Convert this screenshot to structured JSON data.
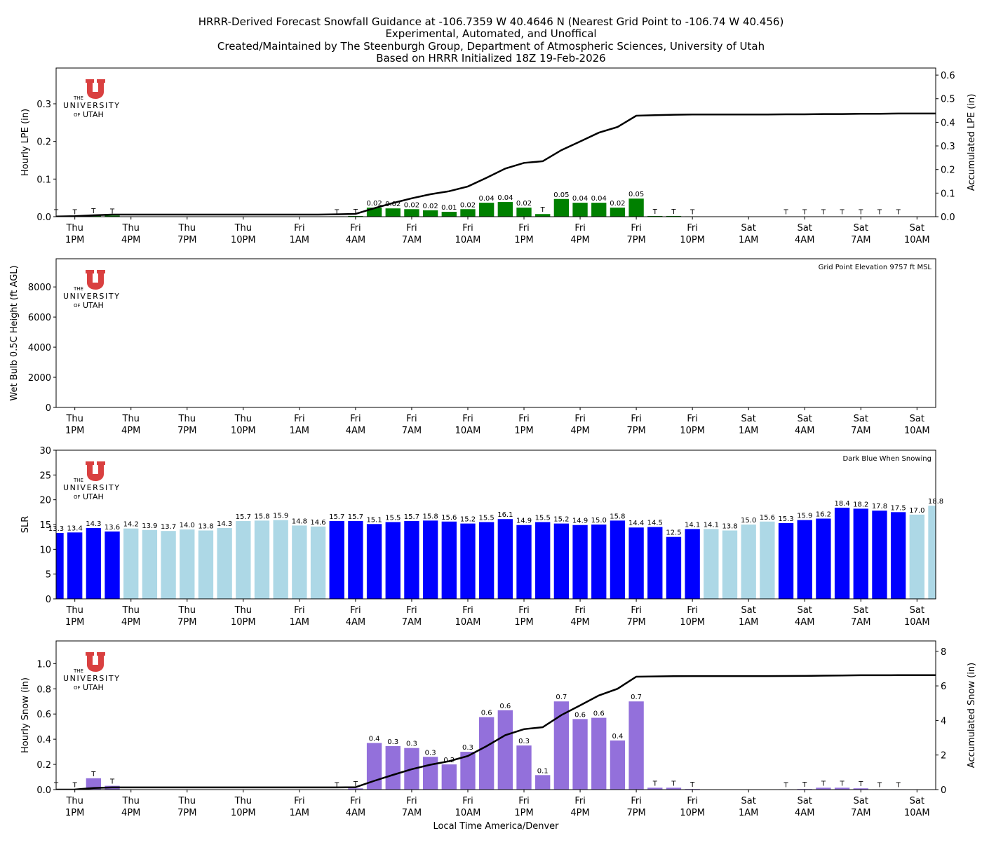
{
  "title_lines": [
    "HRRR-Derived Forecast Snowfall Guidance at -106.7359 W 40.4646 N (Nearest Grid Point to -106.74 W 40.456)",
    "Experimental, Automated, and Unoffical",
    "Created/Maintained by The Steenburgh Group, Department of Atmospheric Sciences, University of Utah",
    "Based on HRRR Initialized 18Z 19-Feb-2026"
  ],
  "logo": {
    "lines": [
      "THE",
      "UNIVERSITY",
      "OF",
      "UTAH"
    ],
    "color": "#d94040"
  },
  "x_tick_labels": [
    [
      "Thu",
      "1PM"
    ],
    [
      "Thu",
      "4PM"
    ],
    [
      "Thu",
      "7PM"
    ],
    [
      "Thu",
      "10PM"
    ],
    [
      "Fri",
      "1AM"
    ],
    [
      "Fri",
      "4AM"
    ],
    [
      "Fri",
      "7AM"
    ],
    [
      "Fri",
      "10AM"
    ],
    [
      "Fri",
      "1PM"
    ],
    [
      "Fri",
      "4PM"
    ],
    [
      "Fri",
      "7PM"
    ],
    [
      "Fri",
      "10PM"
    ],
    [
      "Sat",
      "1AM"
    ],
    [
      "Sat",
      "4AM"
    ],
    [
      "Sat",
      "7AM"
    ],
    [
      "Sat",
      "10AM"
    ]
  ],
  "xlabel": "Local Time America/Denver",
  "chart_data": [
    {
      "type": "bar",
      "ylabel": "Hourly LPE (in)",
      "ylim": [
        0,
        0.395
      ],
      "yticks": [
        0.0,
        0.1,
        0.2,
        0.3
      ],
      "bar_color": "#008000",
      "values": [
        0.001,
        0.001,
        0.004,
        0.003,
        0,
        0,
        0,
        0,
        0,
        0,
        0,
        0,
        0,
        0,
        0,
        0.001,
        0.002,
        0.024,
        0.022,
        0.02,
        0.017,
        0.013,
        0.02,
        0.037,
        0.039,
        0.024,
        0.007,
        0.047,
        0.037,
        0.037,
        0.024,
        0.048,
        0.002,
        0.002,
        0.001,
        0,
        0,
        0,
        0,
        0.0005,
        0.0005,
        0.0005,
        0.0005,
        0.0005,
        0.0005,
        0.0005,
        0,
        0
      ],
      "labels": [
        "T",
        "T",
        "T",
        "T",
        null,
        null,
        null,
        null,
        null,
        null,
        null,
        null,
        null,
        null,
        null,
        "T",
        "T",
        "0.02",
        "0.02",
        "0.02",
        "0.02",
        "0.01",
        "0.02",
        "0.04",
        "0.04",
        "0.02",
        "T",
        "0.05",
        "0.04",
        "0.04",
        "0.02",
        "0.05",
        "T",
        "T",
        "T",
        null,
        null,
        null,
        null,
        "T",
        "T",
        "T",
        "T",
        "T",
        "T",
        "T",
        null,
        null
      ],
      "secondary": {
        "type": "line",
        "ylabel": "Accumulated LPE (in)",
        "ylim": [
          0,
          0.63
        ],
        "yticks": [
          0.0,
          0.1,
          0.2,
          0.3,
          0.4,
          0.5,
          0.6
        ],
        "values": [
          0.001,
          0.002,
          0.006,
          0.009,
          0.009,
          0.009,
          0.009,
          0.009,
          0.009,
          0.009,
          0.009,
          0.009,
          0.009,
          0.009,
          0.009,
          0.01,
          0.012,
          0.036,
          0.058,
          0.078,
          0.095,
          0.108,
          0.128,
          0.165,
          0.204,
          0.228,
          0.235,
          0.282,
          0.319,
          0.356,
          0.38,
          0.428,
          0.43,
          0.432,
          0.433,
          0.433,
          0.433,
          0.433,
          0.433,
          0.434,
          0.434,
          0.435,
          0.435,
          0.436,
          0.436,
          0.437,
          0.437,
          0.437
        ]
      }
    },
    {
      "type": "line",
      "ylabel": "Wet Bulb 0.5C Height (ft AGL)",
      "ylim": [
        0,
        9870
      ],
      "yticks": [
        0,
        2000,
        4000,
        6000,
        8000
      ],
      "annotation": "Grid Point Elevation 9757 ft MSL",
      "values": []
    },
    {
      "type": "bar",
      "ylabel": "SLR",
      "ylim": [
        0,
        30
      ],
      "yticks": [
        0,
        5,
        10,
        15,
        20,
        25,
        30
      ],
      "annotation": "Dark Blue When Snowing",
      "colors": {
        "snowing": "#0000ff",
        "not_snowing": "#add8e6"
      },
      "values": [
        13.3,
        13.4,
        14.3,
        13.6,
        14.2,
        13.9,
        13.7,
        14.0,
        13.8,
        14.3,
        15.7,
        15.8,
        15.9,
        14.8,
        14.6,
        15.7,
        15.7,
        15.1,
        15.5,
        15.7,
        15.8,
        15.6,
        15.2,
        15.5,
        16.1,
        14.9,
        15.5,
        15.2,
        14.9,
        15.0,
        15.8,
        14.4,
        14.5,
        12.5,
        14.1,
        14.1,
        13.8,
        15.0,
        15.6,
        15.3,
        15.9,
        16.2,
        18.4,
        18.2,
        17.8,
        17.5,
        17.0,
        18.8
      ],
      "snowing": [
        1,
        1,
        1,
        1,
        0,
        0,
        0,
        0,
        0,
        0,
        0,
        0,
        0,
        0,
        0,
        1,
        1,
        1,
        1,
        1,
        1,
        1,
        1,
        1,
        1,
        1,
        1,
        1,
        1,
        1,
        1,
        1,
        1,
        1,
        1,
        0,
        0,
        0,
        0,
        1,
        1,
        1,
        1,
        1,
        1,
        1,
        0,
        0
      ]
    },
    {
      "type": "bar",
      "ylabel": "Hourly Snow (in)",
      "ylim": [
        0,
        1.18
      ],
      "yticks": [
        0.0,
        0.2,
        0.4,
        0.6,
        0.8,
        1.0
      ],
      "bar_color": "#9370db",
      "values": [
        0.002,
        0.002,
        0.09,
        0.03,
        0,
        0,
        0,
        0,
        0,
        0,
        0,
        0,
        0,
        0,
        0,
        0.003,
        0.01,
        0.37,
        0.345,
        0.33,
        0.26,
        0.2,
        0.3,
        0.575,
        0.63,
        0.35,
        0.115,
        0.7,
        0.56,
        0.57,
        0.39,
        0.7,
        0.015,
        0.015,
        0.005,
        0,
        0,
        0,
        0,
        0.003,
        0.005,
        0.015,
        0.015,
        0.01,
        0.003,
        0.003,
        0,
        0
      ],
      "labels": [
        "T",
        "T",
        "T",
        "T",
        null,
        null,
        null,
        null,
        null,
        null,
        null,
        null,
        null,
        null,
        null,
        "T",
        "T",
        "0.4",
        "0.3",
        "0.3",
        "0.3",
        "0.2",
        "0.3",
        "0.6",
        "0.6",
        "0.3",
        "0.1",
        "0.7",
        "0.6",
        "0.6",
        "0.4",
        "0.7",
        "T",
        "T",
        "T",
        null,
        null,
        null,
        null,
        "T",
        "T",
        "T",
        "T",
        "T",
        "T",
        "T",
        null,
        null
      ],
      "secondary": {
        "type": "line",
        "ylabel": "Accumulated Snow (in)",
        "ylim": [
          0,
          8.6
        ],
        "yticks": [
          0,
          2,
          4,
          6,
          8
        ],
        "values": [
          0.002,
          0.004,
          0.094,
          0.124,
          0.124,
          0.124,
          0.124,
          0.124,
          0.124,
          0.124,
          0.124,
          0.124,
          0.124,
          0.124,
          0.124,
          0.127,
          0.137,
          0.507,
          0.852,
          1.182,
          1.442,
          1.642,
          1.942,
          2.517,
          3.147,
          3.497,
          3.612,
          4.312,
          4.872,
          5.442,
          5.832,
          6.532,
          6.547,
          6.562,
          6.567,
          6.567,
          6.567,
          6.567,
          6.567,
          6.57,
          6.575,
          6.59,
          6.605,
          6.615,
          6.618,
          6.621,
          6.621,
          6.621
        ]
      }
    }
  ]
}
